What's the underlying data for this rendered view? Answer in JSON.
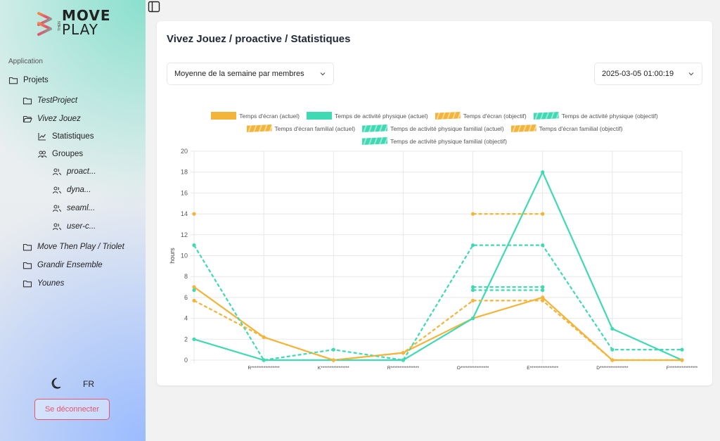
{
  "brand": {
    "line1": "MOVE",
    "then": "THEN",
    "line2": "PLAY"
  },
  "sidebar": {
    "section": "Application",
    "projects_label": "Projets",
    "items": [
      {
        "label": "TestProject"
      },
      {
        "label": "Vivez Jouez"
      },
      {
        "label": "Statistiques"
      },
      {
        "label": "Groupes"
      },
      {
        "label": "proact..."
      },
      {
        "label": "dyna..."
      },
      {
        "label": "seaml..."
      },
      {
        "label": "user-c..."
      },
      {
        "label": "Move Then Play / Triolet"
      },
      {
        "label": "Grandir Ensemble"
      },
      {
        "label": "Younes"
      }
    ],
    "lang": "FR",
    "logout": "Se déconnecter"
  },
  "main": {
    "title": "Vivez Jouez / proactive / Statistiques",
    "mode_select": "Moyenne de la semaine par membres",
    "date_select": "2025-03-05 01:00:19"
  },
  "colors": {
    "orange": "#f3b43a",
    "teal": "#3fd9b3"
  },
  "chart_data": {
    "type": "line",
    "ylabel": "hours",
    "xlabel": "",
    "ylim": [
      0,
      20
    ],
    "yticks": [
      0,
      2,
      4,
      6,
      8,
      10,
      12,
      14,
      16,
      18,
      20
    ],
    "categories": [
      "",
      "R****************",
      "K****************",
      "R****************",
      "O****************",
      "E****************",
      "D****************",
      "F****************"
    ],
    "legend": [
      "Temps d'écran (actuel)",
      "Temps de activité physique (actuel)",
      "Temps d'écran (objectif)",
      "Temps de activité physique (objectif)",
      "Temps d'écran familial (actuel)",
      "Temps de activité physique familial (actuel)",
      "Temps d'écran familial (objectif)",
      "Temps de activité physique familial (objectif)"
    ],
    "series": [
      {
        "name": "Temps d'écran (actuel)",
        "color": "#f3b43a",
        "dashed": false,
        "values": [
          7,
          2.2,
          0,
          0.7,
          4,
          6,
          0,
          0
        ]
      },
      {
        "name": "Temps de activité physique (actuel)",
        "color": "#3fd9b3",
        "dashed": false,
        "values": [
          2,
          0,
          0,
          0,
          4,
          18,
          3,
          0
        ]
      },
      {
        "name": "Temps d'écran (objectif)",
        "color": "#f3b43a",
        "dashed": true,
        "values": [
          14,
          null,
          null,
          null,
          14,
          14,
          null,
          null
        ]
      },
      {
        "name": "Temps de activité physique (objectif)",
        "color": "#3fd9b3",
        "dashed": true,
        "values": [
          11,
          0,
          1,
          0,
          11,
          11,
          1,
          1
        ]
      },
      {
        "name": "Temps d'écran familial (actuel)",
        "color": "#f3b43a",
        "dashed": true,
        "values": [
          5.7,
          2.2,
          0,
          0.7,
          5.7,
          5.7,
          0,
          0
        ]
      },
      {
        "name": "Temps de activité physique familial (actuel)",
        "color": "#3fd9b3",
        "dashed": true,
        "values": [
          6.7,
          null,
          null,
          null,
          6.7,
          6.7,
          null,
          null
        ]
      },
      {
        "name": "Temps d'écran familial (objectif)",
        "color": "#f3b43a",
        "dashed": true,
        "values": [
          null,
          null,
          null,
          null,
          7,
          7,
          null,
          null
        ]
      },
      {
        "name": "Temps de activité physique familial (objectif)",
        "color": "#3fd9b3",
        "dashed": true,
        "values": [
          null,
          null,
          null,
          null,
          7,
          7,
          null,
          null
        ]
      }
    ],
    "grid": true,
    "legend_position": "top"
  }
}
